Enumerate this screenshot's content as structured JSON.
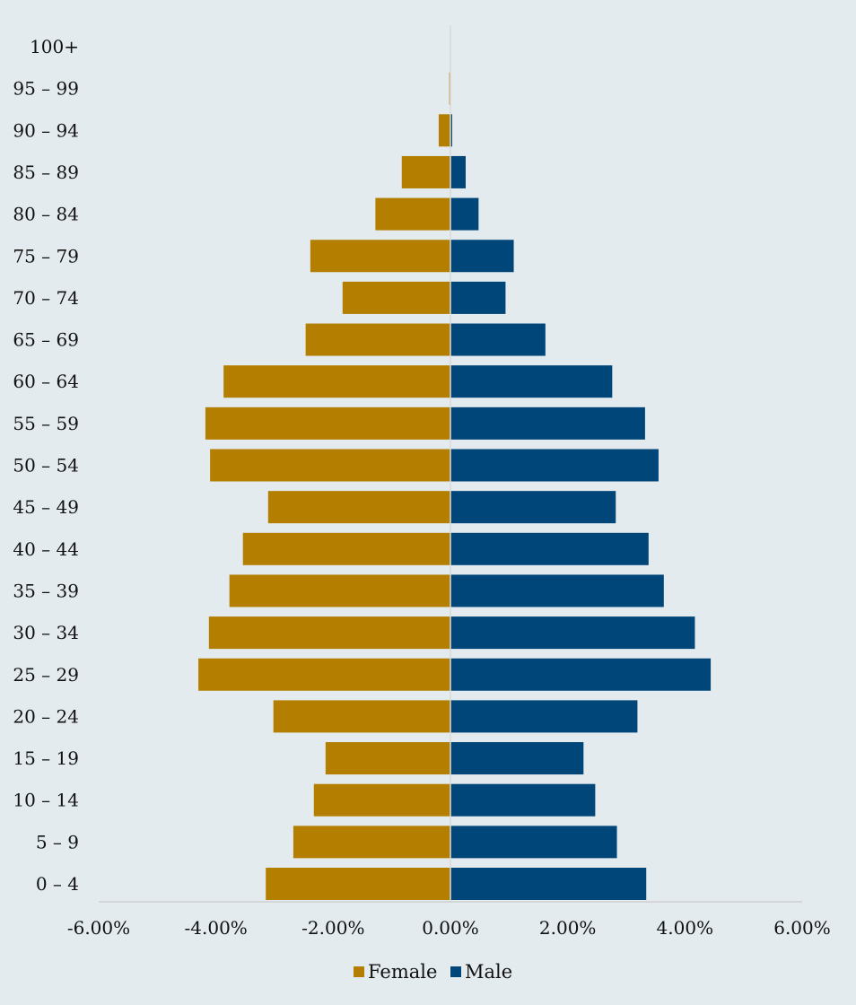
{
  "chart_data": {
    "type": "bar",
    "orientation": "horizontal",
    "categories": [
      "0 – 4",
      "5 – 9",
      "10 – 14",
      "15 – 19",
      "20 – 24",
      "25 – 29",
      "30 – 34",
      "35 – 39",
      "40 – 44",
      "45 – 49",
      "50 – 54",
      "55 – 59",
      "60 – 64",
      "65 – 69",
      "70 – 74",
      "75 – 79",
      "80 – 84",
      "85 – 89",
      "90 – 94",
      "95 – 99",
      "100+"
    ],
    "series": [
      {
        "name": "Female",
        "color": "#b47e00",
        "values": [
          -3.15,
          -2.68,
          -2.33,
          -2.13,
          -3.02,
          -4.3,
          -4.12,
          -3.77,
          -3.54,
          -3.11,
          -4.1,
          -4.18,
          -3.87,
          -2.47,
          -1.84,
          -2.39,
          -1.28,
          -0.83,
          -0.2,
          -0.02,
          0.0
        ]
      },
      {
        "name": "Male",
        "color": "#004678",
        "values": [
          3.34,
          2.84,
          2.47,
          2.27,
          3.19,
          4.44,
          4.17,
          3.64,
          3.38,
          2.82,
          3.55,
          3.32,
          2.76,
          1.62,
          0.94,
          1.08,
          0.48,
          0.26,
          0.03,
          0.0,
          0.0
        ]
      }
    ],
    "xlim": [
      -6,
      6
    ],
    "xticks": [
      -6,
      -4,
      -2,
      0,
      2,
      4,
      6
    ],
    "xtick_labels": [
      "-6.00%",
      "-4.00%",
      "-2.00%",
      "0.00%",
      "2.00%",
      "4.00%",
      "6.00%"
    ],
    "grid": false,
    "legend_position": "bottom"
  }
}
